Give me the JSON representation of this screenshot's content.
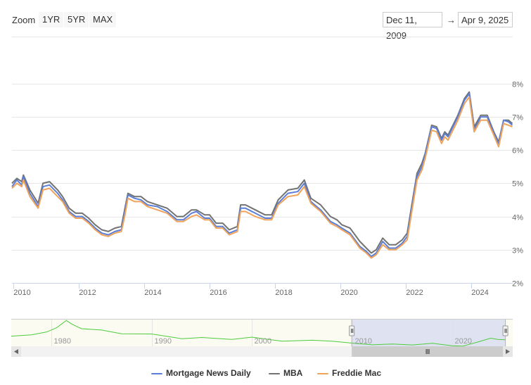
{
  "toolbar": {
    "zoom_label": "Zoom",
    "zoom_buttons": [
      "1YR",
      "5YR",
      "MAX"
    ],
    "date_from": "Dec 11, 2009",
    "date_arrow": "→",
    "date_to": "Apr 9, 2025"
  },
  "colors": {
    "mortgage_news_daily": "#5b7fd8",
    "mba": "#727272",
    "freddie_mac": "#f0a35a",
    "navigator_line": "#4dcc3c",
    "navigator_mask": "#d9ddf0",
    "grid": "#e6e6e6"
  },
  "chart_data": {
    "type": "line",
    "x_range": [
      2009.95,
      2025.28
    ],
    "ylim": [
      2,
      8.4
    ],
    "y_ticks": [
      2,
      3,
      4,
      5,
      6,
      7,
      8
    ],
    "y_tick_labels": [
      "2%",
      "3%",
      "4%",
      "5%",
      "6%",
      "7%",
      "8%"
    ],
    "x_ticks": [
      2010,
      2012,
      2014,
      2016,
      2018,
      2020,
      2022,
      2024
    ],
    "x_tick_labels": [
      "2010",
      "2012",
      "2014",
      "2016",
      "2018",
      "2020",
      "2022",
      "2024"
    ],
    "grid": true,
    "legend_position": "bottom-center",
    "series": [
      {
        "name": "Mortgage News Daily",
        "x": [
          2009.95,
          2010.1,
          2010.25,
          2010.3,
          2010.5,
          2010.75,
          2010.9,
          2011.1,
          2011.35,
          2011.5,
          2011.7,
          2011.9,
          2012.1,
          2012.3,
          2012.5,
          2012.7,
          2012.9,
          2013.1,
          2013.3,
          2013.4,
          2013.5,
          2013.7,
          2013.9,
          2014.1,
          2014.4,
          2014.7,
          2015.0,
          2015.2,
          2015.45,
          2015.6,
          2015.85,
          2016.0,
          2016.2,
          2016.4,
          2016.6,
          2016.85,
          2016.95,
          2017.1,
          2017.4,
          2017.7,
          2017.9,
          2018.1,
          2018.4,
          2018.7,
          2018.9,
          2019.1,
          2019.4,
          2019.7,
          2019.9,
          2020.05,
          2020.3,
          2020.6,
          2020.8,
          2020.95,
          2021.1,
          2021.3,
          2021.5,
          2021.7,
          2021.9,
          2022.05,
          2022.2,
          2022.35,
          2022.5,
          2022.6,
          2022.8,
          2022.95,
          2023.1,
          2023.2,
          2023.3,
          2023.45,
          2023.6,
          2023.8,
          2023.95,
          2024.1,
          2024.3,
          2024.5,
          2024.7,
          2024.85,
          2025.0,
          2025.15,
          2025.27
        ],
        "y": [
          4.9,
          5.1,
          4.95,
          5.2,
          4.7,
          4.3,
          4.9,
          4.95,
          4.7,
          4.5,
          4.15,
          4.0,
          4.0,
          3.85,
          3.65,
          3.5,
          3.45,
          3.55,
          3.6,
          4.1,
          4.65,
          4.55,
          4.5,
          4.35,
          4.3,
          4.15,
          3.9,
          3.9,
          4.1,
          4.15,
          3.95,
          3.95,
          3.7,
          3.7,
          3.5,
          3.6,
          4.25,
          4.25,
          4.1,
          3.95,
          3.95,
          4.4,
          4.7,
          4.75,
          5.0,
          4.45,
          4.2,
          3.85,
          3.75,
          3.65,
          3.5,
          3.1,
          2.95,
          2.8,
          2.9,
          3.25,
          3.05,
          3.05,
          3.2,
          3.4,
          4.3,
          5.2,
          5.5,
          5.85,
          6.7,
          6.65,
          6.3,
          6.5,
          6.4,
          6.7,
          7.0,
          7.5,
          7.7,
          6.6,
          7.0,
          7.0,
          6.5,
          6.2,
          6.9,
          6.85,
          6.75
        ]
      },
      {
        "name": "MBA",
        "x": [
          2009.95,
          2010.1,
          2010.25,
          2010.3,
          2010.5,
          2010.75,
          2010.9,
          2011.1,
          2011.35,
          2011.5,
          2011.7,
          2011.9,
          2012.1,
          2012.3,
          2012.5,
          2012.7,
          2012.9,
          2013.1,
          2013.3,
          2013.4,
          2013.5,
          2013.7,
          2013.9,
          2014.1,
          2014.4,
          2014.7,
          2015.0,
          2015.2,
          2015.45,
          2015.6,
          2015.85,
          2016.0,
          2016.2,
          2016.4,
          2016.6,
          2016.85,
          2016.95,
          2017.1,
          2017.4,
          2017.7,
          2017.9,
          2018.1,
          2018.4,
          2018.7,
          2018.9,
          2019.1,
          2019.4,
          2019.7,
          2019.9,
          2020.05,
          2020.3,
          2020.6,
          2020.8,
          2020.95,
          2021.1,
          2021.3,
          2021.5,
          2021.7,
          2021.9,
          2022.05,
          2022.2,
          2022.35,
          2022.5,
          2022.6,
          2022.8,
          2022.95,
          2023.1,
          2023.2,
          2023.3,
          2023.45,
          2023.6,
          2023.8,
          2023.95,
          2024.1,
          2024.3,
          2024.5,
          2024.7,
          2024.85,
          2025.0,
          2025.15,
          2025.27
        ],
        "y": [
          5.0,
          5.15,
          5.05,
          5.25,
          4.8,
          4.4,
          5.0,
          5.05,
          4.8,
          4.6,
          4.25,
          4.1,
          4.1,
          3.95,
          3.75,
          3.6,
          3.55,
          3.65,
          3.7,
          4.2,
          4.7,
          4.6,
          4.6,
          4.45,
          4.35,
          4.25,
          4.0,
          4.0,
          4.2,
          4.2,
          4.05,
          4.05,
          3.8,
          3.8,
          3.6,
          3.7,
          4.35,
          4.35,
          4.2,
          4.05,
          4.05,
          4.5,
          4.8,
          4.85,
          5.1,
          4.55,
          4.35,
          4.0,
          3.9,
          3.75,
          3.65,
          3.25,
          3.05,
          2.9,
          3.0,
          3.35,
          3.15,
          3.15,
          3.3,
          3.5,
          4.4,
          5.3,
          5.6,
          5.9,
          6.75,
          6.7,
          6.35,
          6.55,
          6.45,
          6.75,
          7.05,
          7.55,
          7.75,
          6.7,
          7.05,
          7.05,
          6.55,
          6.25,
          6.9,
          6.9,
          6.8
        ]
      },
      {
        "name": "Freddie Mac",
        "x": [
          2009.95,
          2010.1,
          2010.25,
          2010.3,
          2010.5,
          2010.75,
          2010.9,
          2011.1,
          2011.35,
          2011.5,
          2011.7,
          2011.9,
          2012.1,
          2012.3,
          2012.5,
          2012.7,
          2012.9,
          2013.1,
          2013.3,
          2013.4,
          2013.5,
          2013.7,
          2013.9,
          2014.1,
          2014.4,
          2014.7,
          2015.0,
          2015.2,
          2015.45,
          2015.6,
          2015.85,
          2016.0,
          2016.2,
          2016.4,
          2016.6,
          2016.85,
          2016.95,
          2017.1,
          2017.4,
          2017.7,
          2017.9,
          2018.1,
          2018.4,
          2018.7,
          2018.9,
          2019.1,
          2019.4,
          2019.7,
          2019.9,
          2020.05,
          2020.3,
          2020.6,
          2020.8,
          2020.95,
          2021.1,
          2021.3,
          2021.5,
          2021.7,
          2021.9,
          2022.05,
          2022.2,
          2022.35,
          2022.5,
          2022.6,
          2022.8,
          2022.95,
          2023.1,
          2023.2,
          2023.3,
          2023.45,
          2023.6,
          2023.8,
          2023.95,
          2024.1,
          2024.3,
          2024.5,
          2024.7,
          2024.85,
          2025.0,
          2025.15,
          2025.27
        ],
        "y": [
          4.85,
          5.0,
          4.9,
          5.1,
          4.6,
          4.25,
          4.8,
          4.85,
          4.6,
          4.45,
          4.1,
          3.95,
          3.95,
          3.8,
          3.6,
          3.45,
          3.4,
          3.5,
          3.55,
          4.0,
          4.55,
          4.45,
          4.45,
          4.3,
          4.2,
          4.1,
          3.85,
          3.85,
          4.0,
          4.05,
          3.9,
          3.9,
          3.65,
          3.65,
          3.45,
          3.55,
          4.15,
          4.15,
          4.0,
          3.9,
          3.9,
          4.35,
          4.6,
          4.65,
          4.9,
          4.4,
          4.15,
          3.8,
          3.7,
          3.6,
          3.45,
          3.05,
          2.9,
          2.75,
          2.85,
          3.15,
          3.0,
          3.0,
          3.15,
          3.3,
          4.2,
          5.1,
          5.4,
          5.75,
          6.6,
          6.55,
          6.2,
          6.4,
          6.3,
          6.6,
          6.9,
          7.4,
          7.6,
          6.55,
          6.9,
          6.9,
          6.45,
          6.1,
          6.8,
          6.75,
          6.7
        ]
      }
    ],
    "navigator": {
      "x_range": [
        1976,
        2026
      ],
      "x_ticks": [
        1980,
        1990,
        2000,
        2010,
        2020
      ],
      "x_tick_labels": [
        "1980",
        "1990",
        "2000",
        "2010",
        "2020"
      ],
      "ylim": [
        2,
        19
      ],
      "x": [
        1976,
        1978,
        1979.5,
        1980.5,
        1981.5,
        1982,
        1983,
        1985,
        1987,
        1990,
        1993,
        1995,
        1998,
        2000,
        2003,
        2006,
        2008,
        2010,
        2012,
        2014,
        2016,
        2018,
        2020,
        2021,
        2022.5,
        2023.8,
        2024.5,
        2025.27
      ],
      "y": [
        8.8,
        9.6,
        11.2,
        13.7,
        18.0,
        16.0,
        13.2,
        12.4,
        10.2,
        10.1,
        7.3,
        8.0,
        6.9,
        8.2,
        5.8,
        6.4,
        5.8,
        4.7,
        3.7,
        4.2,
        3.6,
        4.6,
        3.1,
        2.9,
        5.3,
        7.6,
        6.9,
        6.7
      ],
      "selected_range": [
        2009.95,
        2025.27
      ]
    }
  }
}
